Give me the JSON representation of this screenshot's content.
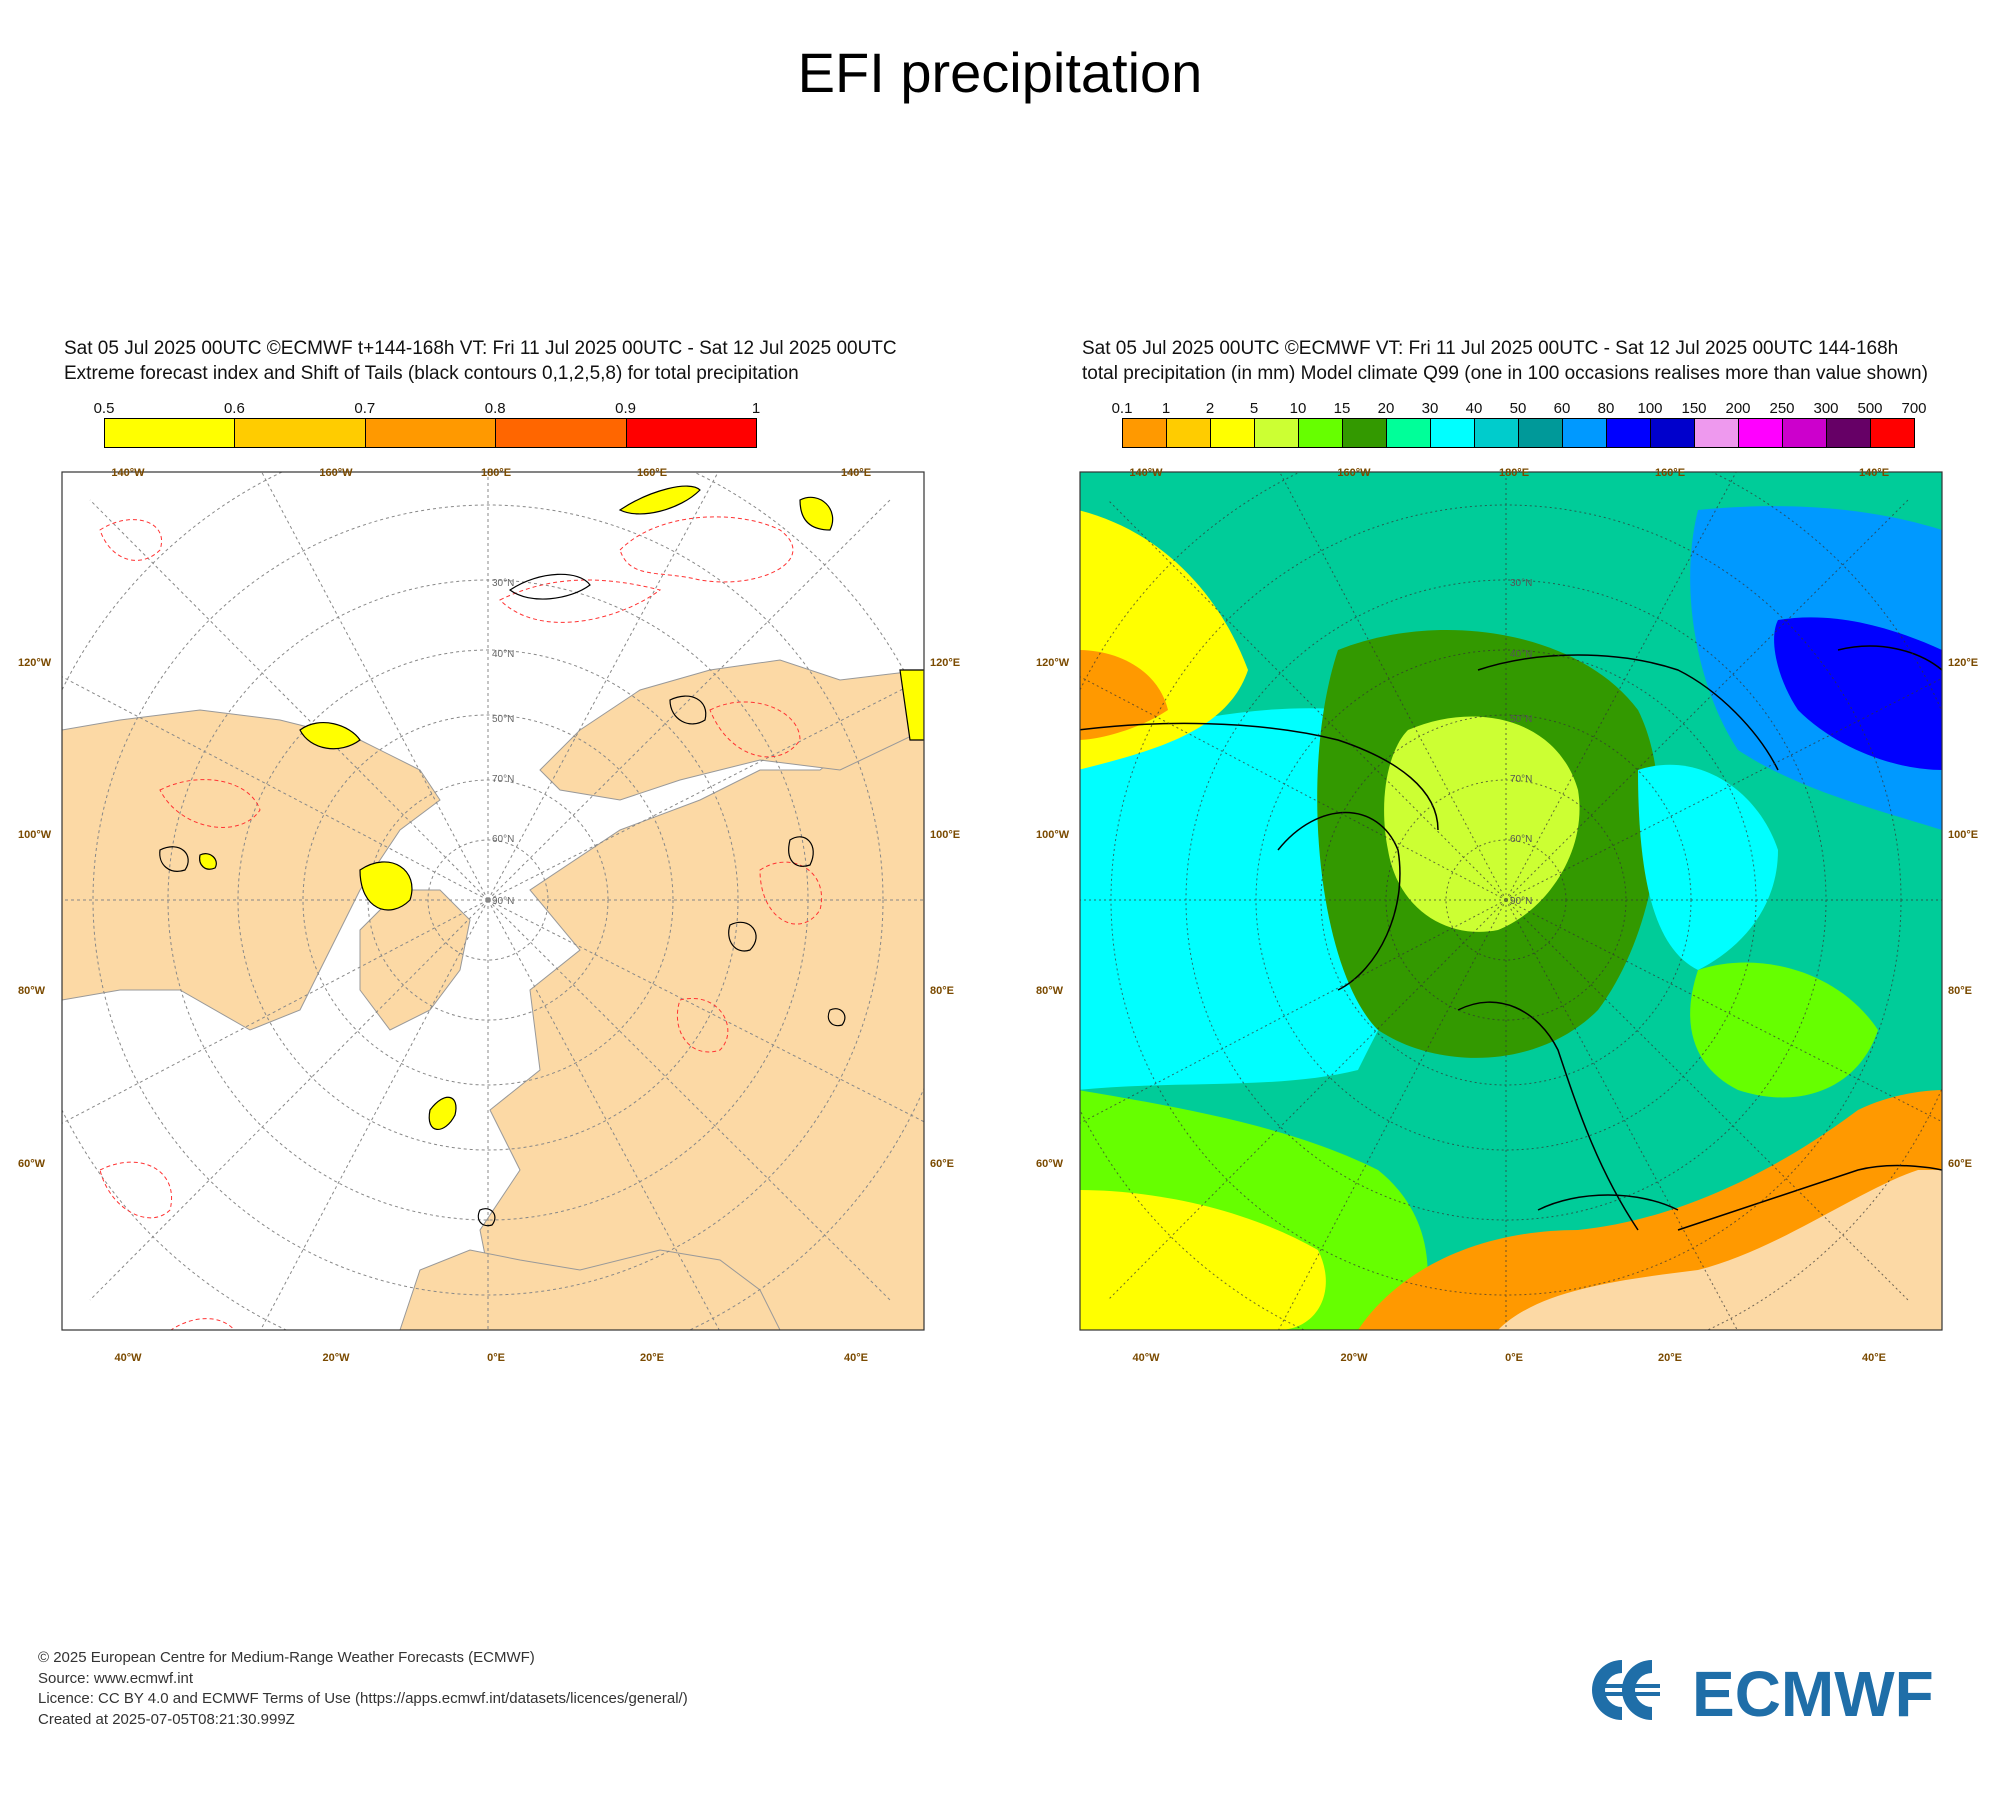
{
  "title": "EFI precipitation",
  "left_panel": {
    "header_line1": "Sat 05 Jul 2025 00UTC ©ECMWF t+144-168h  VT: Fri 11 Jul 2025 00UTC - Sat 12 Jul 2025 00UTC",
    "header_line2": "Extreme forecast index and Shift of Tails (black contours 0,1,2,5,8) for total precipitation",
    "colorbar_ticks": [
      "0.5",
      "0.6",
      "0.7",
      "0.8",
      "0.9",
      "1"
    ],
    "colorbar_colors": [
      "#ffff00",
      "#ffcc00",
      "#ff9900",
      "#ff6600",
      "#ff0000"
    ],
    "lon_top": [
      "140°W",
      "160°W",
      "180°E",
      "160°E",
      "140°E"
    ],
    "lon_bottom": [
      "40°W",
      "20°W",
      "0°E",
      "20°E",
      "40°E"
    ],
    "lat_left": [
      "120°W",
      "100°W",
      "80°W",
      "60°W"
    ],
    "lat_right": [
      "120°E",
      "100°E",
      "80°E",
      "60°E"
    ]
  },
  "right_panel": {
    "header_line1": "Sat 05 Jul 2025 00UTC ©ECMWF VT: Fri 11 Jul 2025 00UTC - Sat 12 Jul 2025 00UTC   144-168h",
    "header_line2": "total precipitation (in mm)  Model climate Q99 (one in 100 occasions realises more than value shown)",
    "colorbar_ticks": [
      "0.1",
      "1",
      "2",
      "5",
      "10",
      "15",
      "20",
      "30",
      "40",
      "50",
      "60",
      "80",
      "100",
      "150",
      "200",
      "250",
      "300",
      "500",
      "700"
    ],
    "colorbar_colors": [
      "#ff9900",
      "#ffcc00",
      "#ffff00",
      "#ccff33",
      "#66ff00",
      "#339900",
      "#00ff99",
      "#00ffff",
      "#00cccc",
      "#009999",
      "#0099ff",
      "#0000ff",
      "#0000cc",
      "#ee99ee",
      "#ff00ff",
      "#cc00cc",
      "#660066",
      "#ff0000"
    ],
    "lon_top": [
      "140°W",
      "160°W",
      "180°E",
      "160°E",
      "140°E"
    ],
    "lon_bottom": [
      "40°W",
      "20°W",
      "0°E",
      "20°E",
      "40°E"
    ],
    "lat_left": [
      "120°W",
      "100°W",
      "80°W",
      "60°W"
    ],
    "lat_right": [
      "120°E",
      "100°E",
      "80°E",
      "60°E"
    ]
  },
  "footer": {
    "line1": "© 2025 European Centre for Medium-Range Weather Forecasts (ECMWF)",
    "line2": "Source: www.ecmwf.int",
    "line3": "Licence: CC BY 4.0 and ECMWF Terms of Use (https://apps.ecmwf.int/datasets/licences/general/)",
    "line4": "Created at 2025-07-05T08:21:30.999Z"
  },
  "logo_text": "ECMWF",
  "colors": {
    "land": "#fcd9a5",
    "sea": "#ffffff",
    "logo_blue": "#1f6ea8"
  }
}
